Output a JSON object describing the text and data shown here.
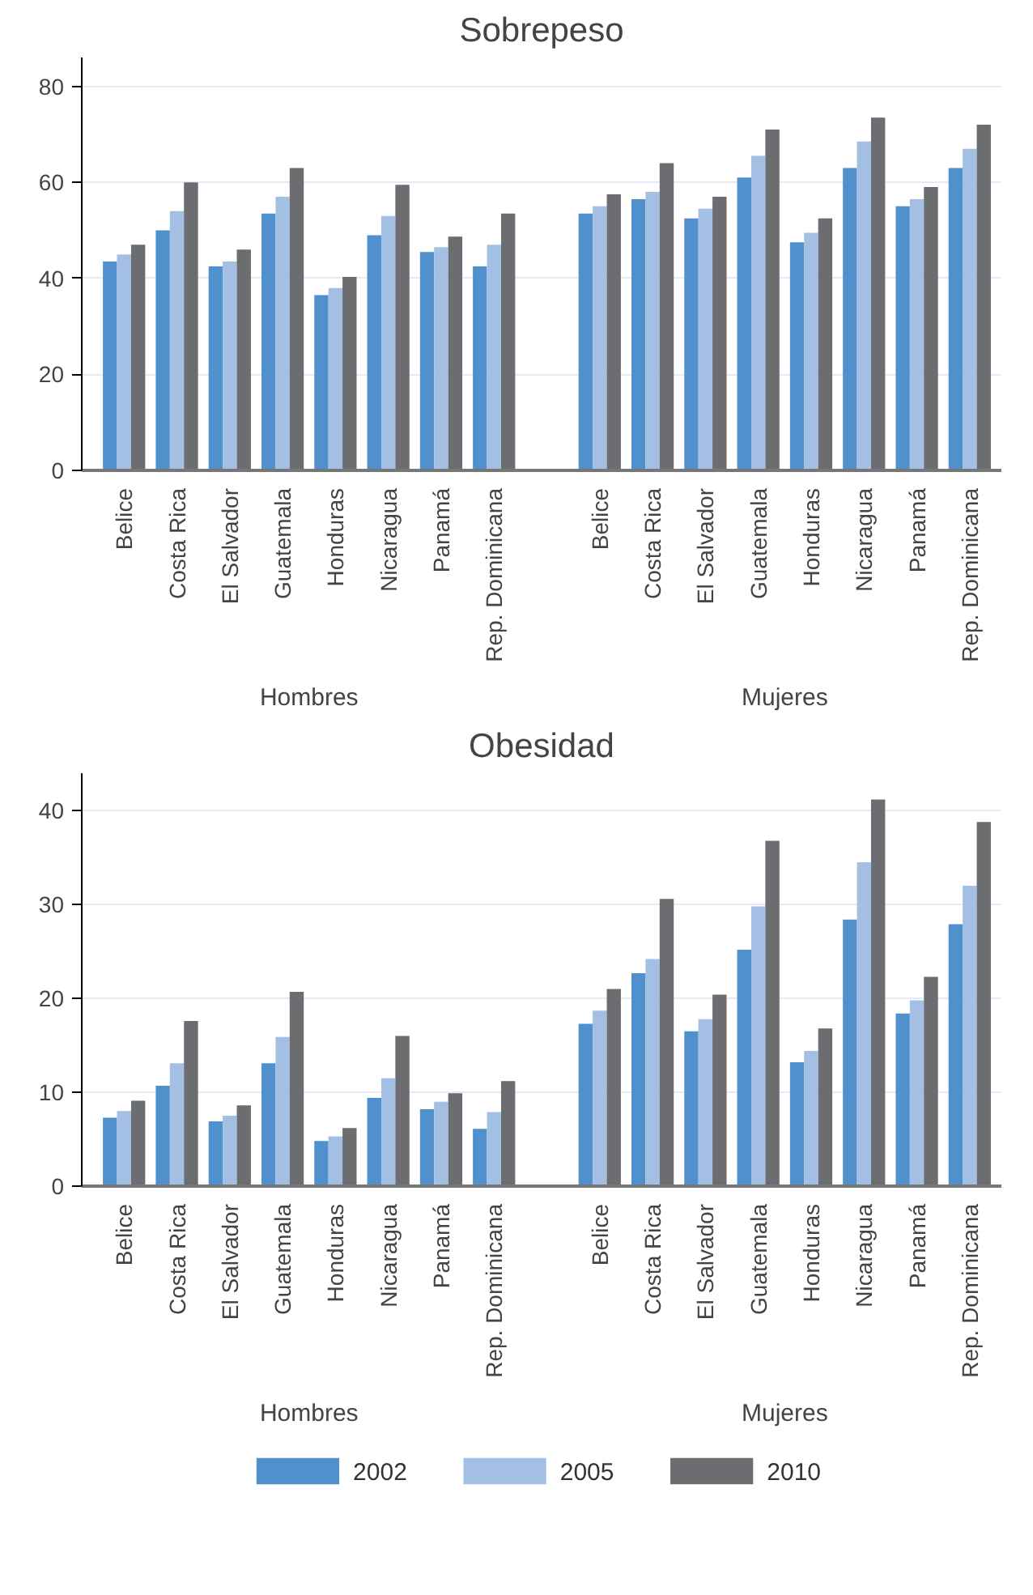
{
  "chart_data": [
    {
      "type": "bar",
      "title": "Sobrepeso",
      "categories": [
        "Belice",
        "Costa Rica",
        "El Salvador",
        "Guatemala",
        "Honduras",
        "Nicaragua",
        "Panamá",
        "Rep. Dominicana",
        "Belice",
        "Costa Rica",
        "El Salvador",
        "Guatemala",
        "Honduras",
        "Nicaragua",
        "Panamá",
        "Rep. Dominicana"
      ],
      "annotations": [
        "Hombres",
        "Mujeres"
      ],
      "series": [
        {
          "color": "#4f90cd",
          "values": [
            43.5,
            50,
            42.5,
            53.5,
            36.5,
            49,
            45.5,
            42.5,
            53.5,
            56.5,
            52.5,
            61,
            47.5,
            63,
            55,
            63
          ]
        },
        {
          "color": "#a3bfe3",
          "values": [
            45,
            54,
            43.5,
            57,
            38,
            53,
            46.5,
            47,
            55,
            58,
            54.5,
            65.5,
            49.5,
            68.5,
            56.5,
            67
          ]
        },
        {
          "color": "#6c6d71",
          "values": [
            47,
            60,
            46,
            63,
            40.3,
            59.5,
            48.7,
            53.5,
            57.5,
            64,
            57,
            71,
            52.5,
            73.5,
            59,
            72
          ]
        }
      ],
      "ylim": [
        0,
        86
      ],
      "yticks": [
        0,
        20,
        40,
        60,
        80
      ],
      "grid": "y",
      "legend": false
    },
    {
      "type": "bar",
      "title": "Obesidad",
      "categories": [
        "Belice",
        "Costa Rica",
        "El Salvador",
        "Guatemala",
        "Honduras",
        "Nicaragua",
        "Panamá",
        "Rep. Dominicana",
        "Belice",
        "Costa Rica",
        "El Salvador",
        "Guatemala",
        "Honduras",
        "Nicaragua",
        "Panamá",
        "Rep. Dominicana"
      ],
      "annotations": [
        "Hombres",
        "Mujeres"
      ],
      "series": [
        {
          "name": "2002",
          "color": "#4f90cd",
          "values": [
            7.3,
            10.7,
            6.9,
            13.1,
            4.8,
            9.4,
            8.2,
            6.1,
            17.3,
            22.7,
            16.5,
            25.2,
            13.2,
            28.4,
            18.4,
            27.9
          ]
        },
        {
          "name": "2005",
          "color": "#a3bfe3",
          "values": [
            8,
            13.1,
            7.5,
            15.9,
            5.3,
            11.5,
            9,
            7.9,
            18.7,
            24.2,
            17.8,
            29.8,
            14.4,
            34.5,
            19.8,
            32
          ]
        },
        {
          "name": "2010",
          "color": "#6c6d71",
          "values": [
            9.1,
            17.6,
            8.6,
            20.7,
            6.2,
            16,
            9.9,
            11.2,
            21,
            30.6,
            20.4,
            36.8,
            16.8,
            41.2,
            22.3,
            38.8
          ]
        }
      ],
      "ylim": [
        0,
        44
      ],
      "yticks": [
        0,
        10,
        20,
        30,
        40
      ],
      "grid": "y",
      "legend": "bottom"
    }
  ]
}
